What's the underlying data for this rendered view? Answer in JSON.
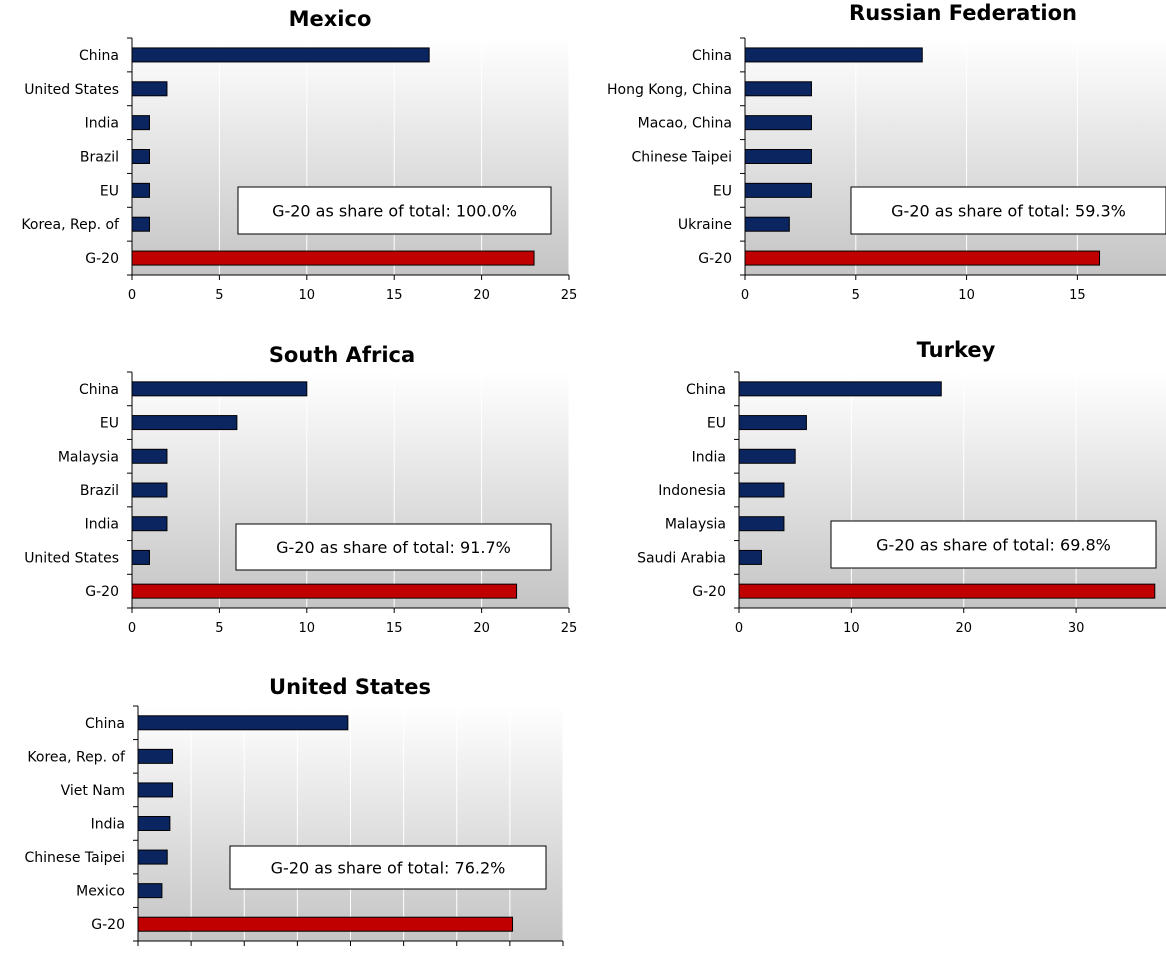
{
  "colors": {
    "country_bar": "#0b2561",
    "g20_bar": "#c00000",
    "grid": "#ffffff",
    "plot_gradient_top": "#ffffff",
    "plot_gradient_bottom": "#c4c4c4"
  },
  "chart_data": [
    {
      "type": "bar",
      "orientation": "horizontal",
      "title": "Mexico",
      "categories": [
        "China",
        "United States",
        "India",
        "Brazil",
        "EU",
        "Korea, Rep. of",
        "G-20"
      ],
      "values": [
        17,
        2,
        1,
        1,
        1,
        1,
        23
      ],
      "xlim": [
        0,
        25
      ],
      "xticks": [
        0,
        5,
        10,
        15,
        20,
        25
      ],
      "grid": true,
      "annotation": "G-20 as share of total:  100.0%"
    },
    {
      "type": "bar",
      "orientation": "horizontal",
      "title": "Russian Federation",
      "categories": [
        "China",
        "Hong Kong, China",
        "Macao, China",
        "Chinese Taipei",
        "EU",
        "Ukraine",
        "G-20"
      ],
      "values": [
        8,
        3,
        3,
        3,
        3,
        2,
        16
      ],
      "xlim": [
        0,
        19
      ],
      "xticks": [
        0,
        5,
        10,
        15
      ],
      "grid": true,
      "annotation": "G-20 as share of total:  59.3%"
    },
    {
      "type": "bar",
      "orientation": "horizontal",
      "title": "South Africa",
      "categories": [
        "China",
        "EU",
        "Malaysia",
        "Brazil",
        "India",
        "United States",
        "G-20"
      ],
      "values": [
        10,
        6,
        2,
        2,
        2,
        1,
        22
      ],
      "xlim": [
        0,
        25
      ],
      "xticks": [
        0,
        5,
        10,
        15,
        20,
        25
      ],
      "grid": true,
      "annotation": "G-20 as share of total:  91.7%"
    },
    {
      "type": "bar",
      "orientation": "horizontal",
      "title": "Turkey",
      "categories": [
        "China",
        "EU",
        "India",
        "Indonesia",
        "Malaysia",
        "Saudi Arabia",
        "G-20"
      ],
      "values": [
        18,
        6,
        5,
        4,
        4,
        2,
        37
      ],
      "xlim": [
        0,
        38
      ],
      "xticks": [
        0,
        10,
        20,
        30
      ],
      "grid": true,
      "annotation": "G-20 as share of total:  69.8%"
    },
    {
      "type": "bar",
      "orientation": "horizontal",
      "title": "United States",
      "categories": [
        "China",
        "Korea, Rep. of",
        "Viet Nam",
        "India",
        "Chinese Taipei",
        "Mexico",
        "G-20"
      ],
      "values": [
        79,
        13,
        13,
        12,
        11,
        9,
        141
      ],
      "xlim": [
        0,
        160
      ],
      "xticks": [
        0,
        20,
        40,
        60,
        80,
        100,
        120,
        140,
        160
      ],
      "grid": true,
      "annotation": "G-20 as share of total:  76.2%"
    }
  ]
}
